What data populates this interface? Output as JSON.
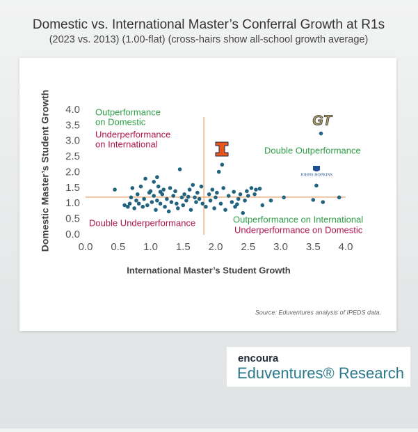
{
  "chart_data": {
    "type": "scatter",
    "title": "Domestic vs. International Master’s Conferral Growth at R1s",
    "subtitle": "(2023 vs. 2013) (1.00-flat) (cross-hairs show all-school growth average)",
    "x_label": "International Master’s Student Growth",
    "y_label": "Domestic Master’s Student Growth",
    "xlim": [
      0,
      4
    ],
    "ylim": [
      0,
      4
    ],
    "xticks": [
      {
        "value": 0,
        "label": "0.0"
      },
      {
        "value": 0.5,
        "label": "0.5"
      },
      {
        "value": 1,
        "label": "1.0"
      },
      {
        "value": 1.5,
        "label": "1.5"
      },
      {
        "value": 2,
        "label": "2.0"
      },
      {
        "value": 2.5,
        "label": "2.5"
      },
      {
        "value": 3,
        "label": "3.0"
      },
      {
        "value": 3.5,
        "label": "3.5"
      },
      {
        "value": 4,
        "label": "4.0"
      }
    ],
    "yticks": [
      {
        "value": 0,
        "label": "0.0"
      },
      {
        "value": 0.5,
        "label": "0.5"
      },
      {
        "value": 1,
        "label": "1.0"
      },
      {
        "value": 1.5,
        "label": "1.5"
      },
      {
        "value": 2,
        "label": "2.0"
      },
      {
        "value": 2.5,
        "label": "2.5"
      },
      {
        "value": 3,
        "label": "3.0"
      },
      {
        "value": 3.5,
        "label": "3.5"
      },
      {
        "value": 4,
        "label": "4.0"
      }
    ],
    "crosshair": {
      "x": 1.82,
      "y": 1.21,
      "color": "#eaa36a"
    },
    "color": "#21637e",
    "x": [
      0.45,
      0.65,
      0.68,
      0.7,
      0.72,
      0.75,
      0.78,
      0.8,
      0.82,
      0.85,
      0.88,
      0.9,
      0.92,
      0.95,
      0.98,
      1.0,
      1.02,
      1.05,
      1.05,
      1.08,
      1.1,
      1.1,
      1.12,
      1.15,
      1.18,
      1.2,
      1.22,
      1.25,
      1.28,
      1.3,
      1.32,
      1.35,
      1.38,
      1.4,
      1.42,
      1.45,
      1.48,
      1.5,
      1.52,
      1.55,
      1.6,
      1.62,
      1.65,
      1.68,
      1.7,
      1.72,
      1.75,
      1.78,
      1.8,
      1.85,
      1.9,
      1.92,
      1.95,
      1.98,
      2.0,
      2.02,
      2.05,
      2.08,
      2.1,
      2.12,
      2.15,
      2.2,
      2.25,
      2.3,
      2.35,
      2.38,
      2.42,
      2.45,
      2.48,
      2.5,
      2.55,
      2.6,
      2.62,
      2.68,
      2.72,
      2.85,
      3.05,
      3.5,
      3.55,
      3.62,
      3.65,
      3.9,
      0.6,
      1.15,
      1.58,
      2.28,
      2.33
    ],
    "values": [
      1.45,
      0.9,
      1.0,
      1.2,
      1.5,
      0.85,
      1.1,
      1.3,
      1.0,
      1.55,
      0.9,
      1.15,
      1.8,
      0.95,
      1.35,
      1.4,
      1.05,
      1.7,
      1.25,
      0.8,
      1.1,
      1.85,
      1.55,
      1.0,
      1.3,
      1.45,
      0.9,
      1.15,
      0.75,
      1.5,
      1.05,
      1.25,
      1.4,
      1.0,
      0.85,
      2.1,
      1.2,
      0.95,
      1.3,
      1.1,
      1.45,
      0.8,
      1.6,
      1.2,
      1.05,
      1.35,
      1.15,
      1.55,
      1.0,
      0.9,
      1.3,
      1.1,
      1.45,
      0.85,
      1.2,
      1.35,
      2.02,
      1.0,
      2.25,
      1.5,
      0.8,
      1.25,
      1.05,
      0.9,
      1.15,
      1.3,
      0.7,
      1.1,
      1.4,
      1.25,
      1.5,
      1.3,
      1.45,
      1.48,
      0.95,
      1.1,
      1.2,
      1.12,
      1.58,
      3.25,
      1.05,
      1.2,
      0.95,
      1.38,
      1.22,
      1.38,
      0.98
    ],
    "annotations": [
      {
        "text": "Outperformance",
        "color": "#2f9e48"
      },
      {
        "text": "on Domestic",
        "color": "#2f9e48"
      },
      {
        "text": "Underperformance",
        "color": "#b0154f"
      },
      {
        "text": "on International",
        "color": "#b0154f"
      },
      {
        "text": "Double Outperformance",
        "color": "#2f9e48"
      },
      {
        "text": "Double Underperformance",
        "color": "#b0154f"
      },
      {
        "text": "Outperformance on International",
        "color": "#2f9e48"
      },
      {
        "text": "Underperformance on Domestic",
        "color": "#b0154f"
      }
    ],
    "logos": [
      "GT",
      "JOHNS HOPKINS"
    ],
    "source": "Source: Eduventures analysis of IPEDS data."
  },
  "footer": {
    "brand": "encoura",
    "product": "Eduventures® Research"
  }
}
